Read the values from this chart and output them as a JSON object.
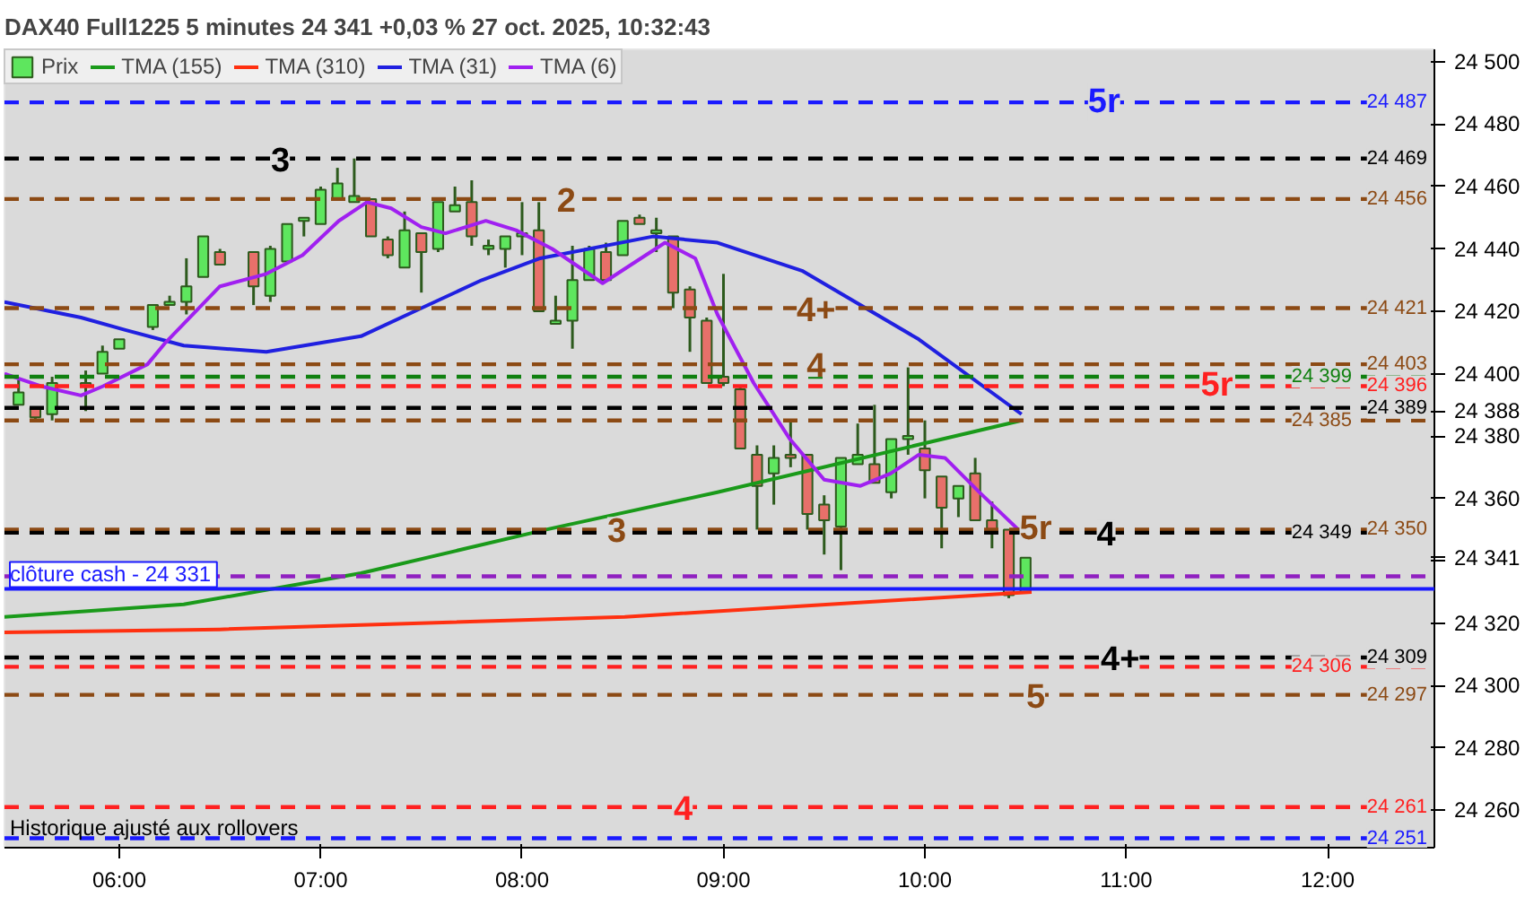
{
  "chart_data": {
    "type": "candlestick",
    "title": "DAX40 Full1225 5 minutes 24 341 +0,03 % 27 oct. 2025, 10:32:43",
    "xlim": [
      5.43,
      12.53
    ],
    "ylim": [
      24248,
      24504
    ],
    "xticks": [
      {
        "value": 6,
        "label": "06:00"
      },
      {
        "value": 7,
        "label": "07:00"
      },
      {
        "value": 8,
        "label": "08:00"
      },
      {
        "value": 9,
        "label": "09:00"
      },
      {
        "value": 10,
        "label": "10:00"
      },
      {
        "value": 11,
        "label": "11:00"
      },
      {
        "value": 12,
        "label": "12:00"
      }
    ],
    "yticks": [
      {
        "value": 24260,
        "label": "24 260"
      },
      {
        "value": 24280,
        "label": "24 280"
      },
      {
        "value": 24300,
        "label": "24 300"
      },
      {
        "value": 24320,
        "label": "24 320"
      },
      {
        "value": 24340,
        "label": null
      },
      {
        "value": 24341,
        "label": "24 341"
      },
      {
        "value": 24360,
        "label": "24 360"
      },
      {
        "value": 24380,
        "label": "24 380"
      },
      {
        "value": 24388,
        "label": "24 388"
      },
      {
        "value": 24400,
        "label": "24 400"
      },
      {
        "value": 24420,
        "label": "24 420"
      },
      {
        "value": 24440,
        "label": "24 440"
      },
      {
        "value": 24460,
        "label": "24 460"
      },
      {
        "value": 24480,
        "label": "24 480"
      },
      {
        "value": 24500,
        "label": "24 500"
      }
    ],
    "legend": "top left",
    "series": [
      {
        "name": "Prix",
        "type": "candlestick",
        "x": [
          5.5,
          5.5833,
          5.6667,
          5.8333,
          5.9167,
          6.0,
          6.1667,
          6.25,
          6.3333,
          6.4167,
          6.5,
          6.6667,
          6.75,
          6.8333,
          6.9167,
          7.0,
          7.0833,
          7.1667,
          7.25,
          7.3333,
          7.4167,
          7.5,
          7.5833,
          7.6667,
          7.75,
          7.8333,
          7.9167,
          8.0,
          8.0833,
          8.1667,
          8.25,
          8.3333,
          8.4167,
          8.5,
          8.5833,
          8.6667,
          8.75,
          8.8333,
          8.9167,
          9.0,
          9.0833,
          9.1667,
          9.25,
          9.3333,
          9.4167,
          9.5,
          9.5833,
          9.6667,
          9.75,
          9.8333,
          9.9167,
          10.0,
          10.0833,
          10.1667,
          10.25,
          10.3333,
          10.4167,
          10.5
        ],
        "ohlc": [
          [
            24390,
            24398,
            24390,
            24394
          ],
          [
            24389,
            24389,
            24385,
            24386
          ],
          [
            24387,
            24399,
            24385,
            24397
          ],
          [
            24397,
            24401,
            24388,
            24396
          ],
          [
            24400,
            24409,
            24400,
            24407
          ],
          [
            24408,
            24411,
            24408,
            24411
          ],
          [
            24415,
            24422,
            24414,
            24422
          ],
          [
            24422,
            24425,
            24422,
            24423
          ],
          [
            24423,
            24437,
            24419,
            24428
          ],
          [
            24431,
            24444,
            24431,
            24444
          ],
          [
            24439,
            24440,
            24435,
            24435
          ],
          [
            24439,
            24439,
            24422,
            24428
          ],
          [
            24425,
            24441,
            24423,
            24440
          ],
          [
            24436,
            24448,
            24436,
            24448
          ],
          [
            24449,
            24450,
            24444,
            24450
          ],
          [
            24448,
            24460,
            24448,
            24459
          ],
          [
            24456,
            24466,
            24456,
            24461
          ],
          [
            24455,
            24469,
            24455,
            24457
          ],
          [
            24456,
            24456,
            24444,
            24444
          ],
          [
            24443,
            24444,
            24437,
            24438
          ],
          [
            24434,
            24452,
            24434,
            24446
          ],
          [
            24445,
            24445,
            24426,
            24439
          ],
          [
            24440,
            24455,
            24439,
            24455
          ],
          [
            24452,
            24460,
            24452,
            24454
          ],
          [
            24455,
            24462,
            24441,
            24444
          ],
          [
            24440,
            24443,
            24438,
            24441
          ],
          [
            24440,
            24444,
            24434,
            24444
          ],
          [
            24444,
            24455,
            24438,
            24445
          ],
          [
            24446,
            24455,
            24420,
            24420
          ],
          [
            24416,
            24425,
            24416,
            24417
          ],
          [
            24417,
            24441,
            24408,
            24430
          ],
          [
            24430,
            24441,
            24430,
            24440
          ],
          [
            24439,
            24442,
            24430,
            24430
          ],
          [
            24438,
            24449,
            24438,
            24449
          ],
          [
            24450,
            24451,
            24448,
            24448
          ],
          [
            24445,
            24450,
            24439,
            24446
          ],
          [
            24444,
            24444,
            24421,
            24426
          ],
          [
            24427,
            24428,
            24407,
            24418
          ],
          [
            24417,
            24418,
            24397,
            24397
          ],
          [
            24399,
            24432,
            24396,
            24397
          ],
          [
            24395,
            24396,
            24376,
            24376
          ],
          [
            24374,
            24377,
            24350,
            24364
          ],
          [
            24368,
            24377,
            24358,
            24373
          ],
          [
            24374,
            24385,
            24370,
            24373
          ],
          [
            24374,
            24374,
            24350,
            24355
          ],
          [
            24358,
            24361,
            24342,
            24353
          ],
          [
            24351,
            24373,
            24337,
            24373
          ],
          [
            24371,
            24384,
            24371,
            24374
          ],
          [
            24371,
            24390,
            24365,
            24365
          ],
          [
            24362,
            24379,
            24360,
            24379
          ],
          [
            24379,
            24402,
            24374,
            24380
          ],
          [
            24376,
            24385,
            24360,
            24369
          ],
          [
            24367,
            24367,
            24344,
            24357
          ],
          [
            24360,
            24364,
            24354,
            24364
          ],
          [
            24368,
            24373,
            24353,
            24353
          ],
          [
            24353,
            24359,
            24344,
            24350
          ],
          [
            24350,
            24350,
            24328,
            24329
          ],
          [
            24330,
            24341,
            24330,
            24341
          ]
        ],
        "colors": [
          "#5ee65e",
          "#e8706a",
          "#5ee65e",
          "#e8706a",
          "#5ee65e",
          "#5ee65e",
          "#5ee65e",
          "#5ee65e",
          "#5ee65e",
          "#5ee65e",
          "#e8706a",
          "#e8706a",
          "#5ee65e",
          "#5ee65e",
          "#5ee65e",
          "#5ee65e",
          "#5ee65e",
          "#5ee65e",
          "#e8706a",
          "#e8706a",
          "#5ee65e",
          "#e8706a",
          "#5ee65e",
          "#5ee65e",
          "#e8706a",
          "#5ee65e",
          "#5ee65e",
          "#5ee65e",
          "#e8706a",
          "#5ee65e",
          "#5ee65e",
          "#5ee65e",
          "#e8706a",
          "#5ee65e",
          "#e8706a",
          "#5ee65e",
          "#e8706a",
          "#e8706a",
          "#e8706a",
          "#e8706a",
          "#e8706a",
          "#e8706a",
          "#5ee65e",
          "#e8706a",
          "#e8706a",
          "#e8706a",
          "#5ee65e",
          "#5ee65e",
          "#e8706a",
          "#5ee65e",
          "#5ee65e",
          "#e8706a",
          "#e8706a",
          "#5ee65e",
          "#e8706a",
          "#e8706a",
          "#e8706a",
          "#5ee65e"
        ]
      },
      {
        "name": "TMA (155)",
        "type": "line",
        "color": "#1a9a1a",
        "x": [
          5.43,
          6.32,
          7.2,
          8.12,
          8.97,
          10.48
        ],
        "values": [
          24322,
          24326,
          24336,
          24350,
          24362,
          24385
        ]
      },
      {
        "name": "TMA (310)",
        "type": "line",
        "color": "#ff3010",
        "x": [
          5.43,
          6.5,
          8.51,
          10.53
        ],
        "values": [
          24317,
          24318,
          24322,
          24330
        ]
      },
      {
        "name": "TMA (31)",
        "type": "line",
        "color": "#2020e0",
        "x": [
          5.43,
          5.81,
          6.03,
          6.32,
          6.73,
          7.2,
          7.5,
          7.8,
          8.09,
          8.65,
          8.97,
          9.39,
          9.97,
          10.48
        ],
        "values": [
          24423,
          24418,
          24414,
          24409,
          24407,
          24412,
          24421,
          24430,
          24437,
          24444,
          24442,
          24433,
          24411,
          24387
        ]
      },
      {
        "name": "TMA (6)",
        "type": "line",
        "color": "#a020f0",
        "x": [
          5.43,
          5.61,
          5.81,
          5.92,
          6.14,
          6.23,
          6.5,
          6.73,
          6.91,
          7.09,
          7.23,
          7.35,
          7.5,
          7.62,
          7.82,
          7.97,
          8.15,
          8.4,
          8.71,
          8.86,
          8.97,
          9.15,
          9.33,
          9.5,
          9.68,
          9.83,
          9.97,
          10.1,
          10.27,
          10.48
        ],
        "values": [
          24400,
          24396,
          24393,
          24396,
          24403,
          24410,
          24428,
          24432,
          24438,
          24449,
          24455,
          24453,
          24447,
          24445,
          24449,
          24446,
          24440,
          24429,
          24442,
          24437,
          24419,
          24397,
          24379,
          24366,
          24364,
          24368,
          24374,
          24373,
          24362,
          24349
        ]
      }
    ],
    "ref_lines": [
      {
        "axis": "y",
        "value": 24487,
        "label": "24 487",
        "color": "#1a1aff",
        "line_style": "dashed"
      },
      {
        "axis": "y",
        "value": 24469,
        "label": "24 469",
        "color": "#000000",
        "line_style": "dashed"
      },
      {
        "axis": "y",
        "value": 24456,
        "label": "24 456",
        "color": "#8c4a14",
        "line_style": "dashed"
      },
      {
        "axis": "y",
        "value": 24421,
        "label": "24 421",
        "color": "#8c4a14",
        "line_style": "dashed"
      },
      {
        "axis": "y",
        "value": 24403,
        "label": "24 403",
        "color": "#8c4a14",
        "line_style": "dashed"
      },
      {
        "axis": "y",
        "value": 24399,
        "label": "24 399",
        "color": "#108010",
        "line_style": "dashed"
      },
      {
        "axis": "y",
        "value": 24396,
        "label": "24 396",
        "color": "#ff2020",
        "line_style": "dashed"
      },
      {
        "axis": "y",
        "value": 24389,
        "label": "24 389",
        "color": "#000000",
        "line_style": "dashed"
      },
      {
        "axis": "y",
        "value": 24385,
        "label": "24 385",
        "color": "#8c4a14",
        "line_style": "dashed"
      },
      {
        "axis": "y",
        "value": 24350,
        "label": "24 350",
        "color": "#8c4a14",
        "line_style": "dashed"
      },
      {
        "axis": "y",
        "value": 24349,
        "label": "24 349",
        "color": "#000000",
        "line_style": "dashed"
      },
      {
        "axis": "y",
        "value": 24335,
        "color": "#9020c0",
        "line_style": "dashed"
      },
      {
        "axis": "y",
        "value": 24331,
        "label": "clôture cash -  24 331",
        "color": "#1a1aff",
        "line_style": "solid"
      },
      {
        "axis": "y",
        "value": 24309,
        "label": "24 309",
        "color": "#000000",
        "line_style": "dashed"
      },
      {
        "axis": "y",
        "value": 24306,
        "label": "24 306",
        "color": "#ff2020",
        "line_style": "dashed"
      },
      {
        "axis": "y",
        "value": 24297,
        "label": "24 297",
        "color": "#8c4a14",
        "line_style": "dashed"
      },
      {
        "axis": "y",
        "value": 24261,
        "label": "24 261",
        "color": "#ff2020",
        "line_style": "dashed"
      },
      {
        "axis": "y",
        "value": 24251,
        "label": "24 251",
        "color": "#1a1aff",
        "line_style": "dashed"
      }
    ],
    "annotations": [
      {
        "text": "5r",
        "x": 10.89,
        "y": 24487
      },
      {
        "text": "3",
        "x": 6.8,
        "y": 24469
      },
      {
        "text": "2",
        "x": 8.22,
        "y": 24456
      },
      {
        "text": "4+",
        "x": 9.46,
        "y": 24421
      },
      {
        "text": "4",
        "x": 9.46,
        "y": 24403
      },
      {
        "text": "5r",
        "x": 11.45,
        "y": 24396
      },
      {
        "text": "3",
        "x": 8.47,
        "y": 24350
      },
      {
        "text": "5r",
        "x": 10.55,
        "y": 24350
      },
      {
        "text": "4",
        "x": 10.9,
        "y": 24349
      },
      {
        "text": "4+",
        "x": 10.97,
        "y": 24309
      },
      {
        "text": "5",
        "x": 10.55,
        "y": 24297
      },
      {
        "text": "4",
        "x": 8.8,
        "y": 24261
      },
      "Historique ajusté aux rollovers"
    ]
  }
}
